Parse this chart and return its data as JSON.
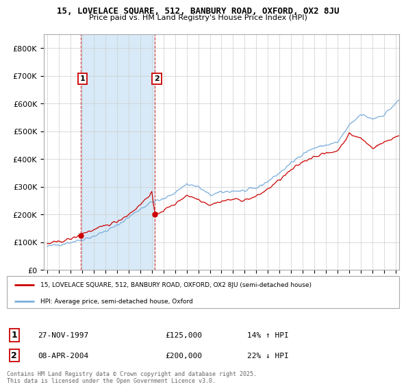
{
  "title1": "15, LOVELACE SQUARE, 512, BANBURY ROAD, OXFORD, OX2 8JU",
  "title2": "Price paid vs. HM Land Registry's House Price Index (HPI)",
  "legend_line1": "15, LOVELACE SQUARE, 512, BANBURY ROAD, OXFORD, OX2 8JU (semi-detached house)",
  "legend_line2": "HPI: Average price, semi-detached house, Oxford",
  "annotation1_date": "27-NOV-1997",
  "annotation1_price": "£125,000",
  "annotation1_hpi": "14% ↑ HPI",
  "annotation2_date": "08-APR-2004",
  "annotation2_price": "£200,000",
  "annotation2_hpi": "22% ↓ HPI",
  "footnote": "Contains HM Land Registry data © Crown copyright and database right 2025.\nThis data is licensed under the Open Government Licence v3.0.",
  "red_color": "#cc0000",
  "blue_color": "#7aaddb",
  "shade_color": "#d8eaf7",
  "background_color": "#ffffff",
  "ylim": [
    0,
    850000
  ],
  "yticks": [
    0,
    100000,
    200000,
    300000,
    400000,
    500000,
    600000,
    700000,
    800000
  ],
  "sale1_x": 1997.9,
  "sale1_y": 125000,
  "sale2_x": 2004.27,
  "sale2_y": 200000,
  "xlim_left": 1994.7,
  "xlim_right": 2025.3
}
